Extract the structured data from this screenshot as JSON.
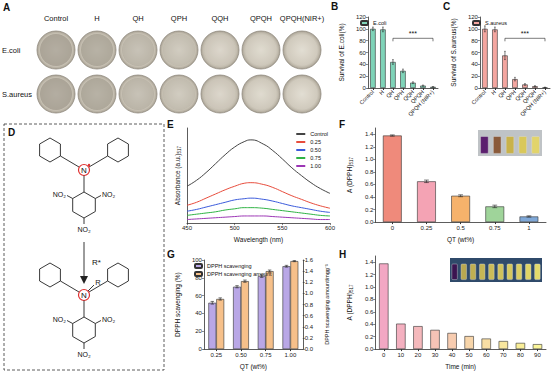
{
  "figure": {
    "A": {
      "panel": "A",
      "columns": [
        "Control",
        "H",
        "QH",
        "QPH",
        "QQH",
        "QPQH",
        "QPQH(NIR+)"
      ],
      "rows": [
        "E.coli",
        "S.aureus"
      ]
    },
    "D": {
      "panel": "D",
      "reactant": {
        "atom": "N",
        "groups": [
          "NO₂",
          "NO₂",
          "NO₂"
        ]
      },
      "reagent": "R*",
      "product": {
        "atom": "N",
        "substituent": "R",
        "groups": [
          "NO₂",
          "NO₂",
          "NO₂"
        ]
      }
    }
  },
  "chart_data": [
    {
      "panel": "B",
      "type": "bar",
      "categories": [
        "Control",
        "H",
        "QH",
        "QPH",
        "QQH",
        "QPQH",
        "QPQH (NIR+)"
      ],
      "series": [
        {
          "name": "E.coli",
          "color": "#7fd3b8",
          "values": [
            100,
            99,
            44,
            29,
            9,
            4,
            2
          ],
          "errors": [
            3,
            4,
            4,
            3,
            1.5,
            1,
            0.5
          ]
        }
      ],
      "ylabel": "Survival of E.coli(%)",
      "ylim": [
        0,
        120
      ],
      "yticks": [
        0,
        20,
        40,
        60,
        80,
        100,
        120
      ],
      "legend": "top-left",
      "annotation": "***"
    },
    {
      "panel": "C",
      "type": "bar",
      "categories": [
        "Control",
        "H",
        "QH",
        "QPH",
        "QQH",
        "QPQH",
        "QPQH (NIR+)"
      ],
      "series": [
        {
          "name": "S.aureus",
          "color": "#f4a6a0",
          "values": [
            100,
            99,
            55,
            15,
            6,
            3,
            1
          ],
          "errors": [
            5,
            4,
            7,
            3,
            1.5,
            1,
            0.5
          ]
        }
      ],
      "ylabel": "Survival of S.aureus(%)",
      "ylim": [
        0,
        120
      ],
      "yticks": [
        0,
        20,
        40,
        60,
        80,
        100,
        120
      ],
      "legend": "top-left",
      "annotation": "***"
    },
    {
      "panel": "E",
      "type": "line",
      "x": [
        450,
        460,
        470,
        480,
        490,
        500,
        510,
        517,
        530,
        540,
        550,
        560,
        570,
        580,
        590,
        600
      ],
      "series": [
        {
          "name": "Control",
          "color": "#444444",
          "values": [
            0.62,
            0.72,
            0.85,
            1.0,
            1.15,
            1.28,
            1.37,
            1.4,
            1.33,
            1.22,
            1.08,
            0.93,
            0.8,
            0.68,
            0.58,
            0.5
          ]
        },
        {
          "name": "0.25",
          "color": "#e74c3c",
          "values": [
            0.3,
            0.35,
            0.42,
            0.49,
            0.56,
            0.62,
            0.67,
            0.68,
            0.65,
            0.6,
            0.53,
            0.46,
            0.4,
            0.34,
            0.29,
            0.25
          ]
        },
        {
          "name": "0.50",
          "color": "#3b5bdb",
          "values": [
            0.2,
            0.23,
            0.27,
            0.31,
            0.35,
            0.39,
            0.41,
            0.42,
            0.4,
            0.37,
            0.33,
            0.29,
            0.26,
            0.23,
            0.2,
            0.18
          ]
        },
        {
          "name": "0.75",
          "color": "#2fb344",
          "values": [
            0.13,
            0.15,
            0.17,
            0.19,
            0.22,
            0.24,
            0.26,
            0.26,
            0.25,
            0.23,
            0.21,
            0.19,
            0.17,
            0.15,
            0.13,
            0.12
          ]
        },
        {
          "name": "1.00",
          "color": "#9c36b5",
          "values": [
            0.06,
            0.07,
            0.08,
            0.09,
            0.1,
            0.11,
            0.12,
            0.12,
            0.12,
            0.11,
            0.1,
            0.09,
            0.08,
            0.07,
            0.06,
            0.06
          ]
        }
      ],
      "xlabel": "Wavelength (nm)",
      "ylabel": "Absorbance (a.u.)",
      "ylabel_subscript": "517",
      "xlim": [
        450,
        600
      ],
      "xticks": [
        450,
        500,
        550,
        600
      ],
      "ylim": [
        0,
        1.6
      ],
      "tick_labels": "x",
      "legend": "top-right"
    },
    {
      "panel": "F",
      "type": "bar",
      "categories": [
        "0",
        "0.25",
        "0.5",
        "0.75",
        "1"
      ],
      "values": [
        1.38,
        0.65,
        0.42,
        0.25,
        0.09
      ],
      "errors": [
        0.01,
        0.02,
        0.015,
        0.02,
        0.01
      ],
      "colors": [
        "#ef8a7b",
        "#f4a3b4",
        "#f6b26b",
        "#9fd49a",
        "#7fa8d8"
      ],
      "xlabel": "QT (wt%)",
      "ylabel": "A (DPPH)",
      "ylabel_subscript": "517",
      "ylim": [
        0,
        1.5
      ],
      "yticks": [
        {
          "value": 0,
          "label": "0.0"
        },
        0.2,
        0.4,
        0.6,
        0.8,
        {
          "value": 1,
          "label": "1.0"
        },
        1.2,
        1.4
      ]
    },
    {
      "panel": "G",
      "type": "bar",
      "categories": [
        "0.25",
        "0.50",
        "0.75",
        "1.00"
      ],
      "series": [
        {
          "name": "DPPH scavenging",
          "color": "#b9a7e6",
          "values": [
            52,
            70,
            82,
            93
          ],
          "errors": [
            1.5,
            1.2,
            1.5,
            1.0
          ]
        },
        {
          "name": "DPPH scavenging amount",
          "color": "#f6c08a",
          "axis": "y2",
          "values": [
            0.9,
            1.22,
            1.4,
            1.58
          ],
          "errors": [
            0.02,
            0.02,
            0.02,
            0.01
          ]
        }
      ],
      "xlabel": "QT (wt%)",
      "ylabel": "DPPH scavenging (%)",
      "y2label": "DPPH scavenging amount/mgg⁻¹",
      "ylim": [
        0,
        100
      ],
      "yticks": [
        0,
        20,
        40,
        60,
        80,
        100
      ],
      "y2lim": [
        0,
        1.6
      ],
      "y2ticks": [
        {
          "value": 0,
          "label": "0.0"
        },
        0.2,
        0.4,
        0.6,
        0.8,
        {
          "value": 1,
          "label": "1.0"
        },
        1.2,
        1.4,
        1.6
      ],
      "legend": "top-left"
    },
    {
      "panel": "H",
      "type": "bar",
      "categories": [
        "0",
        "10",
        "20",
        "30",
        "40",
        "50",
        "60",
        "70",
        "80",
        "90"
      ],
      "values": [
        1.38,
        0.41,
        0.37,
        0.31,
        0.26,
        0.21,
        0.17,
        0.13,
        0.1,
        0.08
      ],
      "colors": [
        "#f2a7c3",
        "#f4b0c0",
        "#f5b9bc",
        "#f6c3b6",
        "#f7ccb0",
        "#f7d5aa",
        "#f8dea4",
        "#f8e69e",
        "#f9ee98",
        "#faf59a"
      ],
      "xlabel": "Time (min)",
      "ylabel": "A (DPPH)",
      "ylabel_subscript": "517",
      "ylim": [
        0,
        1.5
      ],
      "yticks": [
        {
          "value": 0,
          "label": "0.0"
        },
        0.2,
        0.4,
        0.6,
        0.8,
        {
          "value": 1,
          "label": "1.0"
        },
        1.2,
        1.4
      ]
    }
  ]
}
